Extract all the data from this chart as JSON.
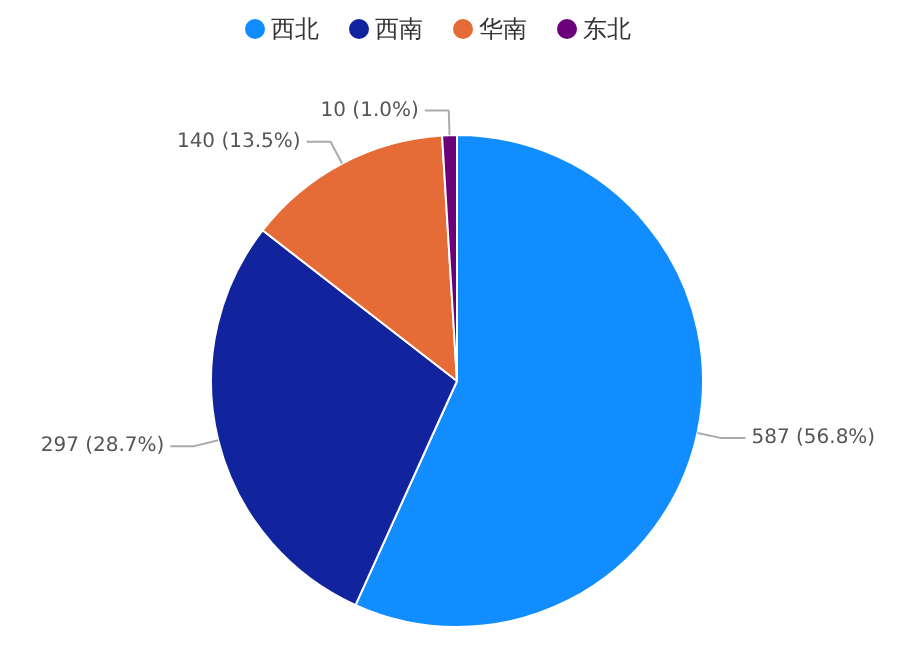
{
  "chart_data": {
    "type": "pie",
    "categories": [
      "西北",
      "西南",
      "华南",
      "东北"
    ],
    "values": [
      587,
      297,
      140,
      10
    ],
    "colors": [
      "#118dff",
      "#12239e",
      "#e66c37",
      "#6b007b"
    ],
    "value_labels": [
      "587 (56.8%)",
      "297 (28.7%)",
      "140 (13.5%)",
      "10 (1.0%)"
    ],
    "legend": "top"
  }
}
